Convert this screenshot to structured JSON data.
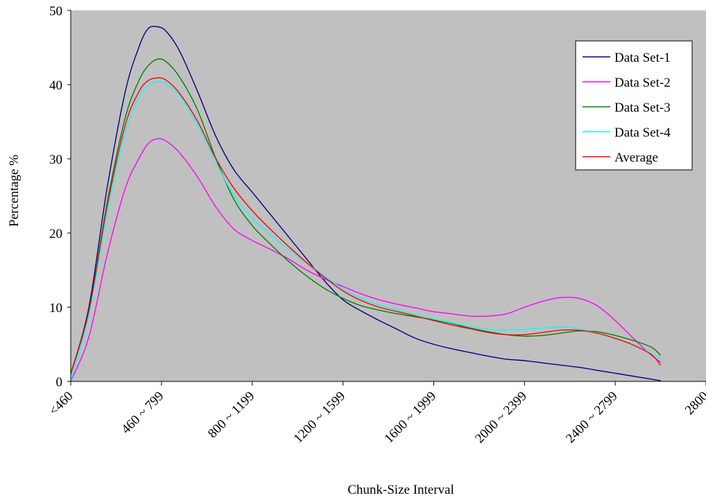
{
  "chart_data": {
    "type": "line",
    "title": "",
    "xlabel": "Chunk-Size  Interval",
    "ylabel": "Percentage %",
    "ylim": [
      0,
      50
    ],
    "yticks": [
      0,
      10,
      20,
      30,
      40,
      50
    ],
    "xlim": [
      0,
      7
    ],
    "categories": [
      "<460",
      "460 ~ 799",
      "800 ~ 1199",
      "1200 ~ 1599",
      "1600 ~ 1999",
      "2000 ~ 2399",
      "2400 ~ 2799",
      "2800"
    ],
    "grid": false,
    "legend_position": "top-right",
    "plot_background": "#c0c0c0",
    "series": [
      {
        "name": "Data Set-1",
        "color": "#000080",
        "points": [
          [
            0,
            1
          ],
          [
            0.2,
            10
          ],
          [
            0.4,
            26
          ],
          [
            0.6,
            39
          ],
          [
            0.75,
            45
          ],
          [
            0.85,
            47.5
          ],
          [
            0.95,
            47.8
          ],
          [
            1.05,
            47.2
          ],
          [
            1.2,
            44.5
          ],
          [
            1.4,
            39
          ],
          [
            1.6,
            33
          ],
          [
            1.8,
            28.5
          ],
          [
            2,
            25.5
          ],
          [
            2.2,
            22.5
          ],
          [
            2.4,
            19.5
          ],
          [
            2.6,
            16.5
          ],
          [
            2.8,
            13.5
          ],
          [
            3,
            11
          ],
          [
            3.2,
            9.5
          ],
          [
            3.4,
            8.2
          ],
          [
            3.6,
            7
          ],
          [
            3.8,
            5.8
          ],
          [
            4,
            5
          ],
          [
            4.2,
            4.4
          ],
          [
            4.4,
            3.9
          ],
          [
            4.6,
            3.4
          ],
          [
            4.8,
            3
          ],
          [
            5,
            2.8
          ],
          [
            5.2,
            2.5
          ],
          [
            5.4,
            2.2
          ],
          [
            5.6,
            1.9
          ],
          [
            5.8,
            1.5
          ],
          [
            6,
            1.1
          ],
          [
            6.2,
            0.7
          ],
          [
            6.4,
            0.3
          ],
          [
            6.5,
            0.1
          ]
        ]
      },
      {
        "name": "Data Set-2",
        "color": "#ff00ff",
        "points": [
          [
            0,
            0
          ],
          [
            0.2,
            6
          ],
          [
            0.4,
            17
          ],
          [
            0.6,
            26
          ],
          [
            0.75,
            30
          ],
          [
            0.85,
            32
          ],
          [
            0.95,
            32.7
          ],
          [
            1.05,
            32.4
          ],
          [
            1.2,
            30.8
          ],
          [
            1.4,
            27.5
          ],
          [
            1.6,
            23.5
          ],
          [
            1.8,
            20.5
          ],
          [
            2,
            19
          ],
          [
            2.2,
            17.8
          ],
          [
            2.4,
            16.5
          ],
          [
            2.6,
            15
          ],
          [
            2.8,
            13.8
          ],
          [
            3,
            12.8
          ],
          [
            3.2,
            11.8
          ],
          [
            3.4,
            11
          ],
          [
            3.6,
            10.4
          ],
          [
            3.8,
            9.9
          ],
          [
            4,
            9.4
          ],
          [
            4.2,
            9.1
          ],
          [
            4.4,
            8.8
          ],
          [
            4.6,
            8.8
          ],
          [
            4.8,
            9.1
          ],
          [
            5,
            10
          ],
          [
            5.2,
            10.8
          ],
          [
            5.4,
            11.3
          ],
          [
            5.6,
            11.2
          ],
          [
            5.8,
            10.2
          ],
          [
            6,
            8.2
          ],
          [
            6.2,
            5.8
          ],
          [
            6.4,
            3.5
          ],
          [
            6.5,
            2.6
          ]
        ]
      },
      {
        "name": "Data Set-3",
        "color": "#008000",
        "points": [
          [
            0,
            1
          ],
          [
            0.2,
            9.5
          ],
          [
            0.4,
            24
          ],
          [
            0.6,
            35.5
          ],
          [
            0.75,
            40.5
          ],
          [
            0.85,
            42.5
          ],
          [
            0.95,
            43.4
          ],
          [
            1.05,
            43.1
          ],
          [
            1.2,
            41
          ],
          [
            1.4,
            36.5
          ],
          [
            1.6,
            30
          ],
          [
            1.8,
            24.5
          ],
          [
            2,
            21
          ],
          [
            2.2,
            18.5
          ],
          [
            2.4,
            16.2
          ],
          [
            2.6,
            14.2
          ],
          [
            2.8,
            12.5
          ],
          [
            3,
            11.2
          ],
          [
            3.2,
            10.2
          ],
          [
            3.4,
            9.6
          ],
          [
            3.6,
            9.1
          ],
          [
            3.8,
            8.7
          ],
          [
            4,
            8.3
          ],
          [
            4.2,
            7.8
          ],
          [
            4.4,
            7.2
          ],
          [
            4.6,
            6.7
          ],
          [
            4.8,
            6.3
          ],
          [
            5,
            6.1
          ],
          [
            5.2,
            6.2
          ],
          [
            5.4,
            6.5
          ],
          [
            5.6,
            6.8
          ],
          [
            5.8,
            6.7
          ],
          [
            6,
            6.2
          ],
          [
            6.2,
            5.5
          ],
          [
            6.4,
            4.6
          ],
          [
            6.5,
            3.5
          ]
        ]
      },
      {
        "name": "Data Set-4",
        "color": "#00ffff",
        "points": [
          [
            0,
            0
          ],
          [
            0.2,
            9
          ],
          [
            0.4,
            22.5
          ],
          [
            0.6,
            33.5
          ],
          [
            0.75,
            38.3
          ],
          [
            0.85,
            39.8
          ],
          [
            0.95,
            40.4
          ],
          [
            1.05,
            40.1
          ],
          [
            1.2,
            38.5
          ],
          [
            1.4,
            34.5
          ],
          [
            1.6,
            29.5
          ],
          [
            1.8,
            25
          ],
          [
            2,
            22
          ],
          [
            2.2,
            19.8
          ],
          [
            2.4,
            17.8
          ],
          [
            2.6,
            16
          ],
          [
            2.8,
            14.2
          ],
          [
            3,
            12.5
          ],
          [
            3.2,
            11.2
          ],
          [
            3.4,
            10.3
          ],
          [
            3.6,
            9.6
          ],
          [
            3.8,
            9
          ],
          [
            4,
            8.4
          ],
          [
            4.2,
            7.9
          ],
          [
            4.4,
            7.4
          ],
          [
            4.6,
            7
          ],
          [
            4.8,
            6.9
          ],
          [
            5,
            7
          ],
          [
            5.2,
            7.2
          ],
          [
            5.4,
            7.3
          ],
          [
            5.6,
            7.1
          ],
          [
            5.8,
            6.5
          ],
          [
            6,
            5.8
          ],
          [
            6.2,
            4.9
          ],
          [
            6.4,
            3.8
          ],
          [
            6.5,
            3
          ]
        ]
      },
      {
        "name": "Average",
        "color": "#ff0000",
        "points": [
          [
            0,
            1
          ],
          [
            0.2,
            9.5
          ],
          [
            0.4,
            23.5
          ],
          [
            0.6,
            34.5
          ],
          [
            0.75,
            39
          ],
          [
            0.85,
            40.5
          ],
          [
            0.95,
            40.9
          ],
          [
            1.05,
            40.6
          ],
          [
            1.2,
            38.8
          ],
          [
            1.4,
            35
          ],
          [
            1.6,
            30
          ],
          [
            1.8,
            26
          ],
          [
            2,
            23
          ],
          [
            2.2,
            20.5
          ],
          [
            2.4,
            18.2
          ],
          [
            2.6,
            16
          ],
          [
            2.8,
            14
          ],
          [
            3,
            12.2
          ],
          [
            3.2,
            10.9
          ],
          [
            3.4,
            10
          ],
          [
            3.6,
            9.4
          ],
          [
            3.8,
            8.8
          ],
          [
            4,
            8.2
          ],
          [
            4.2,
            7.6
          ],
          [
            4.4,
            7.1
          ],
          [
            4.6,
            6.6
          ],
          [
            4.8,
            6.3
          ],
          [
            5,
            6.3
          ],
          [
            5.2,
            6.6
          ],
          [
            5.4,
            6.9
          ],
          [
            5.6,
            6.9
          ],
          [
            5.8,
            6.5
          ],
          [
            6,
            5.8
          ],
          [
            6.2,
            4.9
          ],
          [
            6.4,
            3.6
          ],
          [
            6.5,
            2.2
          ]
        ]
      }
    ]
  }
}
